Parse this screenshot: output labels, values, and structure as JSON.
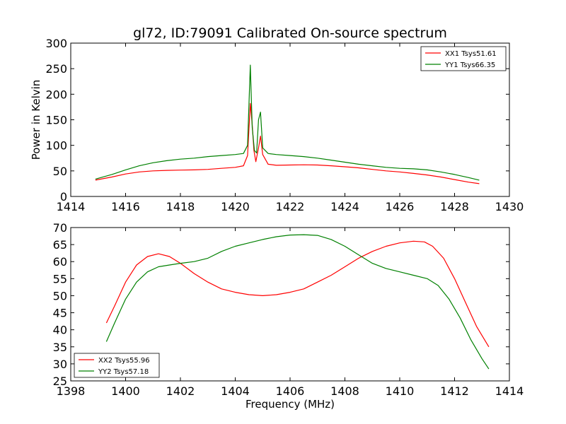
{
  "title": "gl72, ID:79091 Calibrated On-source spectrum",
  "colors": {
    "xx": "#ff0000",
    "yy": "#008000"
  },
  "chart_data": [
    {
      "type": "line",
      "ylabel": "Power in Kelvin",
      "xlabel": "",
      "xlim": [
        1414,
        1430
      ],
      "ylim": [
        0,
        300
      ],
      "xticks": [
        1414,
        1416,
        1418,
        1420,
        1422,
        1424,
        1426,
        1428,
        1430
      ],
      "yticks": [
        0,
        50,
        100,
        150,
        200,
        250,
        300
      ],
      "legend_position": "top-right",
      "series": [
        {
          "name": "XX1 Tsys51.61",
          "color": "#ff0000",
          "x": [
            1414.9,
            1415.5,
            1416.0,
            1416.5,
            1417.0,
            1417.5,
            1418.0,
            1418.5,
            1419.0,
            1419.5,
            1420.0,
            1420.3,
            1420.45,
            1420.55,
            1420.62,
            1420.68,
            1420.75,
            1420.85,
            1420.92,
            1421.0,
            1421.2,
            1421.5,
            1422.0,
            1422.5,
            1423.0,
            1423.5,
            1424.0,
            1424.5,
            1425.0,
            1425.5,
            1426.0,
            1426.5,
            1427.0,
            1427.5,
            1428.0,
            1428.5,
            1428.9
          ],
          "y": [
            32,
            38,
            44,
            48,
            50,
            51,
            51.5,
            52,
            53,
            55,
            57,
            60,
            80,
            182,
            140,
            90,
            68,
            95,
            118,
            82,
            63,
            61,
            61.5,
            62,
            61.5,
            60,
            58,
            56,
            53,
            50,
            48,
            45,
            42,
            38,
            33,
            28,
            25
          ]
        },
        {
          "name": "YY1 Tsys66.35",
          "color": "#008000",
          "x": [
            1414.9,
            1415.5,
            1416.0,
            1416.5,
            1417.0,
            1417.5,
            1418.0,
            1418.5,
            1419.0,
            1419.5,
            1420.0,
            1420.3,
            1420.45,
            1420.55,
            1420.62,
            1420.7,
            1420.78,
            1420.85,
            1420.92,
            1421.0,
            1421.2,
            1421.5,
            1422.0,
            1422.5,
            1423.0,
            1423.5,
            1424.0,
            1424.5,
            1425.0,
            1425.5,
            1426.0,
            1426.5,
            1427.0,
            1427.5,
            1428.0,
            1428.5,
            1428.9
          ],
          "y": [
            34,
            43,
            52,
            60,
            66,
            70,
            73,
            75,
            78,
            80,
            82,
            84,
            100,
            257,
            135,
            90,
            85,
            150,
            165,
            95,
            84,
            82,
            80,
            78,
            75,
            71,
            67,
            63,
            60,
            57,
            55,
            54,
            52,
            48,
            43,
            37,
            32
          ]
        }
      ]
    },
    {
      "type": "line",
      "ylabel": "",
      "xlabel": "Frequency (MHz)",
      "xlim": [
        1398,
        1414
      ],
      "ylim": [
        25,
        70
      ],
      "xticks": [
        1398,
        1400,
        1402,
        1404,
        1406,
        1408,
        1410,
        1412,
        1414
      ],
      "yticks": [
        25,
        30,
        35,
        40,
        45,
        50,
        55,
        60,
        65,
        70
      ],
      "legend_position": "bottom-left",
      "series": [
        {
          "name": "XX2 Tsys55.96",
          "color": "#ff0000",
          "x": [
            1399.3,
            1399.6,
            1400.0,
            1400.4,
            1400.8,
            1401.2,
            1401.6,
            1402.0,
            1402.5,
            1403.0,
            1403.5,
            1404.0,
            1404.5,
            1405.0,
            1405.5,
            1406.0,
            1406.5,
            1407.0,
            1407.5,
            1408.0,
            1408.5,
            1409.0,
            1409.5,
            1410.0,
            1410.5,
            1410.9,
            1411.2,
            1411.6,
            1412.0,
            1412.4,
            1412.8,
            1413.25
          ],
          "y": [
            42,
            47,
            54,
            59,
            61.5,
            62.3,
            61.5,
            59.5,
            56.5,
            54,
            52,
            51,
            50.3,
            50,
            50.3,
            51,
            52,
            54,
            56,
            58.5,
            61,
            63,
            64.5,
            65.5,
            66,
            65.8,
            64.5,
            61,
            55,
            48,
            41,
            35
          ]
        },
        {
          "name": "YY2 Tsys57.18",
          "color": "#008000",
          "x": [
            1399.3,
            1399.6,
            1400.0,
            1400.4,
            1400.8,
            1401.2,
            1401.6,
            1402.0,
            1402.5,
            1403.0,
            1403.5,
            1404.0,
            1404.5,
            1405.0,
            1405.5,
            1406.0,
            1406.5,
            1407.0,
            1407.5,
            1408.0,
            1408.5,
            1409.0,
            1409.5,
            1410.0,
            1410.5,
            1411.0,
            1411.4,
            1411.8,
            1412.2,
            1412.6,
            1413.0,
            1413.25
          ],
          "y": [
            36.5,
            42,
            49,
            54,
            57,
            58.5,
            59,
            59.5,
            60,
            61,
            63,
            64.5,
            65.5,
            66.5,
            67.3,
            67.8,
            67.9,
            67.7,
            66.5,
            64.5,
            62,
            59.5,
            58,
            57,
            56,
            55,
            53,
            49,
            43.5,
            37,
            31.5,
            28.5
          ]
        }
      ]
    }
  ]
}
